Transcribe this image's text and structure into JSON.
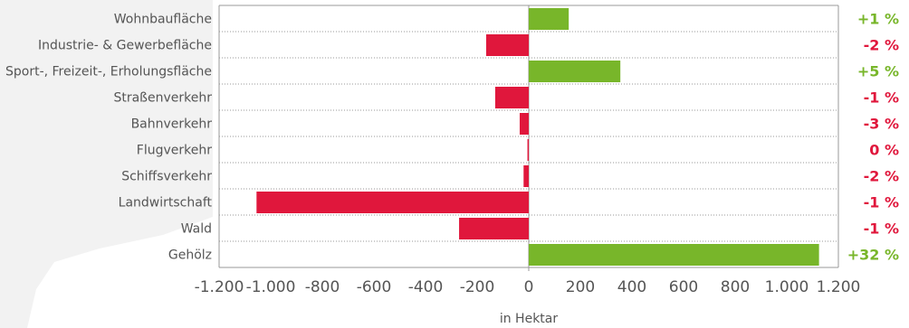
{
  "chart_data": {
    "type": "bar",
    "orientation": "horizontal",
    "categories": [
      "Wohnbaufläche",
      "Industrie- & Gewerbefläche",
      "Sport-, Freizeit-, Erholungsfläche",
      "Straßenverkehr",
      "Bahnverkehr",
      "Flugverkehr",
      "Schiffsverkehr",
      "Landwirtschaft",
      "Wald",
      "Gehölz"
    ],
    "values": [
      155,
      -165,
      355,
      -130,
      -35,
      -5,
      -20,
      -1055,
      -270,
      1125
    ],
    "percent_labels": [
      "+1 %",
      "-2 %",
      "+5 %",
      "-1 %",
      "-3 %",
      "0 %",
      "-2 %",
      "-1 %",
      "-1 %",
      "+32 %"
    ],
    "xlabel": "in Hektar",
    "xlim": [
      -1200,
      1200
    ],
    "xticks": [
      -1200,
      -1000,
      -800,
      -600,
      -400,
      -200,
      0,
      200,
      400,
      600,
      800,
      1000,
      1200
    ],
    "xtick_labels": [
      "-1.200",
      "-1.000",
      "-800",
      "-600",
      "-400",
      "-200",
      "0",
      "200",
      "400",
      "600",
      "800",
      "1.000",
      "1.200"
    ],
    "grid": "dotted-horizontal",
    "colors": {
      "positive": "#78b62a",
      "negative": "#e0173c",
      "zero_label": "#e0173c",
      "text": "#555555",
      "grid": "#999999",
      "background_shape": "#f2f2f2"
    }
  }
}
